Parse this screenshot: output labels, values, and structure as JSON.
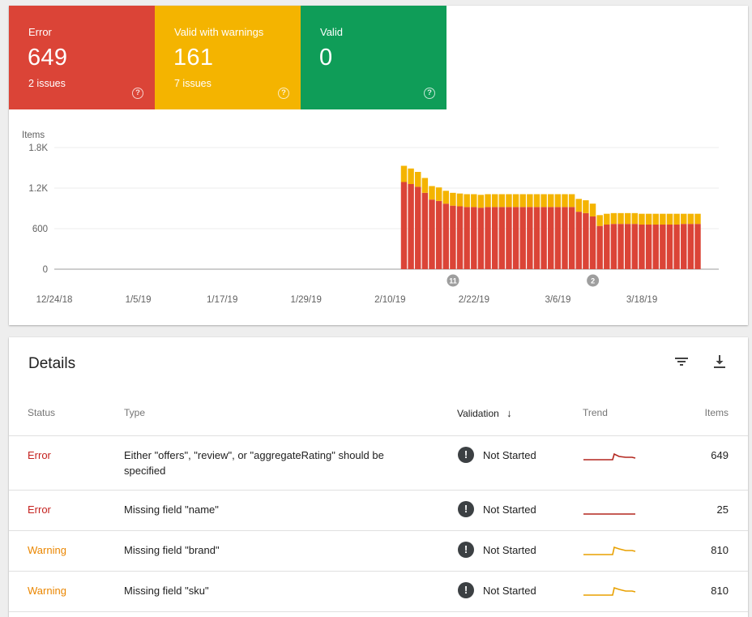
{
  "summary": {
    "error": {
      "label": "Error",
      "count": "649",
      "issues": "2 issues",
      "color": "#db4437"
    },
    "warning": {
      "label": "Valid with warnings",
      "count": "161",
      "issues": "7 issues",
      "color": "#f4b400"
    },
    "valid": {
      "label": "Valid",
      "count": "0",
      "color": "#0f9d58"
    },
    "help_glyph": "?"
  },
  "chart_data": {
    "type": "bar",
    "stacked": true,
    "ylabel": "Items",
    "yticks": [
      "0",
      "600",
      "1.2K",
      "1.8K"
    ],
    "ylim": [
      0,
      1800
    ],
    "xticks": [
      "12/24/18",
      "1/5/19",
      "1/17/19",
      "1/29/19",
      "2/10/19",
      "2/22/19",
      "3/6/19",
      "3/18/19"
    ],
    "x_start": "12/24/18",
    "x_end": "3/29/19",
    "bars_start": "2/12/19",
    "annotations": [
      {
        "label": "11",
        "date": "2/19/19"
      },
      {
        "label": "2",
        "date": "3/11/19"
      }
    ],
    "series": [
      {
        "name": "Error",
        "color": "#db4437",
        "values": [
          1290,
          1260,
          1220,
          1130,
          1030,
          1010,
          970,
          940,
          930,
          920,
          920,
          910,
          920,
          920,
          920,
          920,
          920,
          920,
          920,
          920,
          920,
          920,
          920,
          920,
          920,
          850,
          830,
          780,
          640,
          660,
          670,
          670,
          670,
          670,
          660,
          660,
          660,
          660,
          660,
          660,
          670,
          670,
          670
        ]
      },
      {
        "name": "Valid with warnings",
        "color": "#f4b400",
        "values": [
          240,
          230,
          220,
          220,
          200,
          200,
          190,
          190,
          190,
          190,
          190,
          190,
          190,
          190,
          190,
          190,
          190,
          190,
          190,
          190,
          190,
          190,
          190,
          190,
          190,
          190,
          190,
          190,
          160,
          160,
          160,
          160,
          160,
          160,
          160,
          160,
          160,
          160,
          160,
          160,
          150,
          150,
          150
        ]
      }
    ]
  },
  "details": {
    "title": "Details",
    "filter_icon": "filter-icon",
    "download_icon": "download-icon",
    "headers": {
      "status": "Status",
      "type": "Type",
      "validation": "Validation",
      "validation_sort": "↓",
      "trend": "Trend",
      "items": "Items"
    },
    "rows": [
      {
        "status": "Error",
        "status_kind": "error",
        "type": "Either \"offers\", \"review\", or \"aggregateRating\" should be specified",
        "validation": "Not Started",
        "items": "649",
        "trend": [
          [
            0,
            0
          ],
          [
            36,
            0
          ],
          [
            38,
            -7
          ],
          [
            44,
            -4
          ],
          [
            52,
            -3
          ],
          [
            60,
            -3
          ],
          [
            64,
            -2
          ]
        ],
        "trend_color": "#b3261e"
      },
      {
        "status": "Error",
        "status_kind": "error",
        "type": "Missing field \"name\"",
        "validation": "Not Started",
        "items": "25",
        "trend": [
          [
            0,
            0
          ],
          [
            64,
            0
          ]
        ],
        "trend_color": "#b3261e"
      },
      {
        "status": "Warning",
        "status_kind": "warning",
        "type": "Missing field \"brand\"",
        "validation": "Not Started",
        "items": "810",
        "trend": [
          [
            0,
            0
          ],
          [
            36,
            0
          ],
          [
            38,
            -9
          ],
          [
            44,
            -7
          ],
          [
            52,
            -5
          ],
          [
            60,
            -5
          ],
          [
            64,
            -4
          ]
        ],
        "trend_color": "#e8a000"
      },
      {
        "status": "Warning",
        "status_kind": "warning",
        "type": "Missing field \"sku\"",
        "validation": "Not Started",
        "items": "810",
        "trend": [
          [
            0,
            0
          ],
          [
            36,
            0
          ],
          [
            38,
            -9
          ],
          [
            44,
            -7
          ],
          [
            52,
            -5
          ],
          [
            60,
            -5
          ],
          [
            64,
            -4
          ]
        ],
        "trend_color": "#e8a000"
      }
    ],
    "validation_icon_glyph": "!"
  }
}
